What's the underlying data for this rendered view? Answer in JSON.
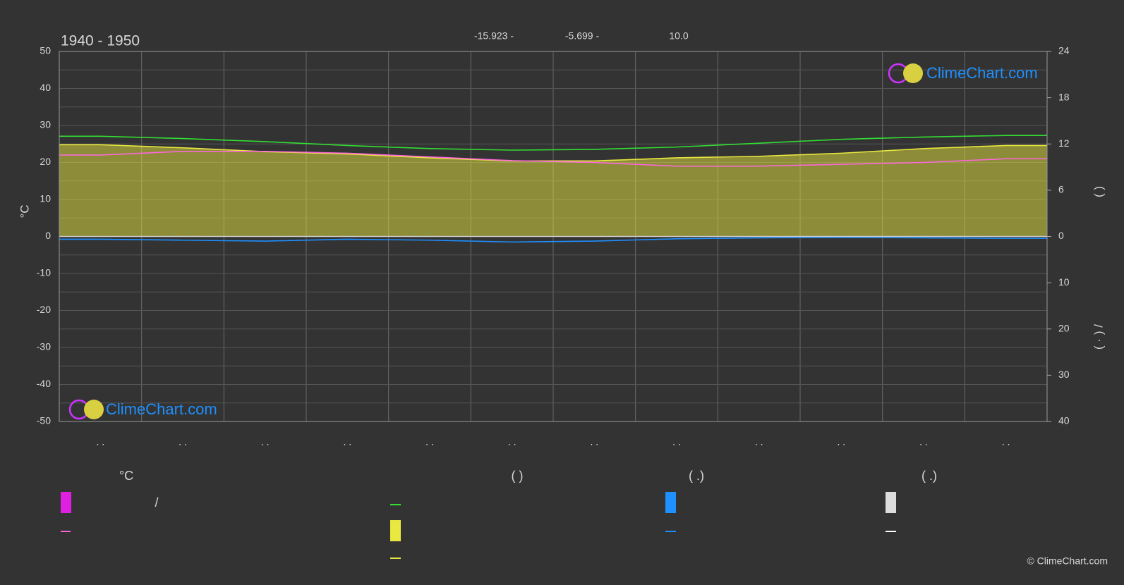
{
  "chart_data": {
    "type": "line",
    "title": "1940 - 1950",
    "header_texts": [
      "-15.923 -",
      "-5.699 -",
      "10.0"
    ],
    "ylabel": "°C",
    "y2_label": "(       )",
    "precip_label": "( · )          /",
    "logo_text": "ClimeChart.com",
    "copyright": "© ClimeChart.com",
    "legend_headers": [
      "°C",
      "(            )",
      "(   .)",
      "(   .)"
    ],
    "legend_slash": "/",
    "categories": [
      ". .",
      ". .",
      ". .",
      ". .",
      ". .",
      ". .",
      ". .",
      ". .",
      ". .",
      ". .",
      ". .",
      ". ."
    ],
    "ylim": [
      -50,
      50
    ],
    "yticks": [
      -50,
      -40,
      -30,
      -20,
      -10,
      0,
      10,
      20,
      30,
      40,
      50
    ],
    "y2lim": [
      0,
      24
    ],
    "y2ticks": [
      0,
      6,
      12,
      18,
      24
    ],
    "precip_lim": [
      0,
      40
    ],
    "precip_ticks": [
      10,
      20,
      30,
      40
    ],
    "grid": true,
    "series": [
      {
        "color": "#33dd33",
        "axis": "y2",
        "values": [
          13.0,
          12.7,
          12.3,
          11.8,
          11.4,
          11.2,
          11.3,
          11.6,
          12.1,
          12.6,
          12.9,
          13.1
        ]
      },
      {
        "color": "#e8e840",
        "axis": "y2",
        "fill": true,
        "values": [
          11.9,
          11.5,
          11.0,
          10.7,
          10.2,
          9.8,
          9.8,
          10.2,
          10.4,
          10.8,
          11.4,
          11.8
        ]
      },
      {
        "color": "#ff66dd",
        "axis": "y",
        "values": [
          22,
          23,
          23,
          22.5,
          21.5,
          20.5,
          20,
          19,
          19,
          19.5,
          20,
          21
        ]
      },
      {
        "color": "#1e90ff",
        "axis": "precip",
        "values": [
          0.6,
          0.8,
          1.0,
          0.6,
          0.8,
          1.2,
          1.0,
          0.5,
          0.3,
          0.2,
          0.3,
          0.4
        ]
      }
    ]
  }
}
